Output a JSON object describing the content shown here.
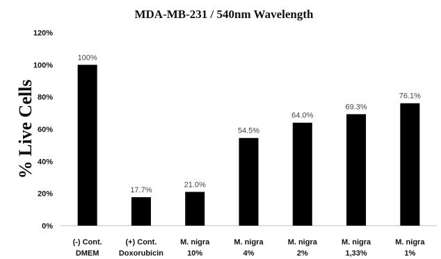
{
  "chart_data": {
    "type": "bar",
    "title": "MDA-MB-231 / 540nm Wavelength",
    "xlabel": "",
    "ylabel": "% Live Cells",
    "ylim": [
      0,
      120
    ],
    "yticks": [
      "0%",
      "20%",
      "40%",
      "60%",
      "80%",
      "100%",
      "120%"
    ],
    "categories": [
      [
        "(-) Cont.",
        "DMEM"
      ],
      [
        "(+) Cont.",
        "Doxorubicin"
      ],
      [
        "M. nigra",
        "10%"
      ],
      [
        "M. nigra",
        "4%"
      ],
      [
        "M. nigra",
        "2%"
      ],
      [
        "M. nigra",
        "1,33%"
      ],
      [
        "M. nigra",
        "1%"
      ]
    ],
    "values": [
      100,
      17.7,
      21.0,
      54.5,
      64.0,
      69.3,
      76.1
    ],
    "data_labels": [
      "100%",
      "17.7%",
      "21.0%",
      "54.5%",
      "64.0%",
      "69.3%",
      "76.1%"
    ],
    "grid": false,
    "bar_color": "#000000"
  }
}
